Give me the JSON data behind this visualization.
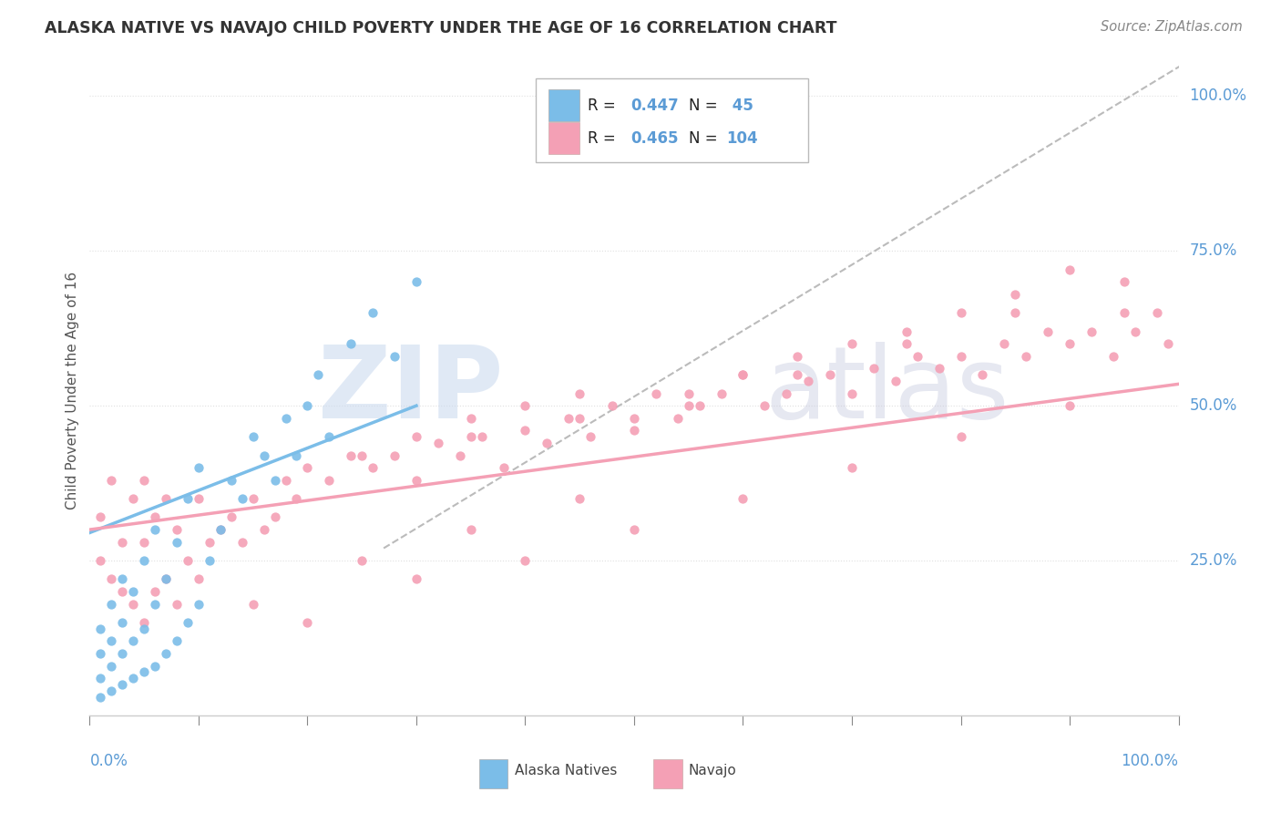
{
  "title": "ALASKA NATIVE VS NAVAJO CHILD POVERTY UNDER THE AGE OF 16 CORRELATION CHART",
  "source": "Source: ZipAtlas.com",
  "ylabel": "Child Poverty Under the Age of 16",
  "ytick_labels": [
    "25.0%",
    "50.0%",
    "75.0%",
    "100.0%"
  ],
  "ytick_values": [
    0.25,
    0.5,
    0.75,
    1.0
  ],
  "alaska_color": "#7bbde8",
  "navajo_color": "#f4a0b5",
  "alaska_R": 0.447,
  "alaska_N": 45,
  "navajo_R": 0.465,
  "navajo_N": 104,
  "legend_label_alaska": "Alaska Natives",
  "legend_label_navajo": "Navajo",
  "axis_label_color": "#5b9bd5",
  "background_color": "#ffffff",
  "grid_color": "#e0e0e0",
  "title_color": "#333333",
  "alaska_scatter_x": [
    0.01,
    0.01,
    0.01,
    0.01,
    0.02,
    0.02,
    0.02,
    0.02,
    0.03,
    0.03,
    0.03,
    0.03,
    0.04,
    0.04,
    0.04,
    0.05,
    0.05,
    0.05,
    0.06,
    0.06,
    0.06,
    0.07,
    0.07,
    0.08,
    0.08,
    0.09,
    0.09,
    0.1,
    0.1,
    0.11,
    0.12,
    0.13,
    0.14,
    0.15,
    0.16,
    0.17,
    0.18,
    0.19,
    0.2,
    0.21,
    0.22,
    0.24,
    0.26,
    0.28,
    0.3
  ],
  "alaska_scatter_y": [
    0.03,
    0.06,
    0.1,
    0.14,
    0.04,
    0.08,
    0.12,
    0.18,
    0.05,
    0.1,
    0.15,
    0.22,
    0.06,
    0.12,
    0.2,
    0.07,
    0.14,
    0.25,
    0.08,
    0.18,
    0.3,
    0.1,
    0.22,
    0.12,
    0.28,
    0.15,
    0.35,
    0.18,
    0.4,
    0.25,
    0.3,
    0.38,
    0.35,
    0.45,
    0.42,
    0.38,
    0.48,
    0.42,
    0.5,
    0.55,
    0.45,
    0.6,
    0.65,
    0.58,
    0.7
  ],
  "navajo_scatter_x": [
    0.01,
    0.01,
    0.02,
    0.02,
    0.03,
    0.03,
    0.04,
    0.04,
    0.05,
    0.05,
    0.05,
    0.06,
    0.06,
    0.07,
    0.07,
    0.08,
    0.08,
    0.09,
    0.1,
    0.1,
    0.11,
    0.12,
    0.13,
    0.14,
    0.15,
    0.16,
    0.17,
    0.18,
    0.19,
    0.2,
    0.22,
    0.24,
    0.26,
    0.28,
    0.3,
    0.32,
    0.34,
    0.36,
    0.38,
    0.4,
    0.42,
    0.44,
    0.46,
    0.48,
    0.5,
    0.52,
    0.54,
    0.56,
    0.58,
    0.6,
    0.62,
    0.64,
    0.66,
    0.68,
    0.7,
    0.72,
    0.74,
    0.76,
    0.78,
    0.8,
    0.82,
    0.84,
    0.86,
    0.88,
    0.9,
    0.92,
    0.94,
    0.95,
    0.96,
    0.98,
    0.99,
    0.3,
    0.35,
    0.4,
    0.45,
    0.5,
    0.55,
    0.6,
    0.65,
    0.7,
    0.75,
    0.8,
    0.85,
    0.9,
    0.25,
    0.35,
    0.45,
    0.55,
    0.65,
    0.75,
    0.85,
    0.95,
    0.2,
    0.3,
    0.4,
    0.5,
    0.6,
    0.7,
    0.8,
    0.9,
    0.15,
    0.25,
    0.35,
    0.45
  ],
  "navajo_scatter_y": [
    0.25,
    0.32,
    0.22,
    0.38,
    0.2,
    0.28,
    0.18,
    0.35,
    0.15,
    0.28,
    0.38,
    0.2,
    0.32,
    0.22,
    0.35,
    0.18,
    0.3,
    0.25,
    0.22,
    0.35,
    0.28,
    0.3,
    0.32,
    0.28,
    0.35,
    0.3,
    0.32,
    0.38,
    0.35,
    0.4,
    0.38,
    0.42,
    0.4,
    0.42,
    0.38,
    0.44,
    0.42,
    0.45,
    0.4,
    0.46,
    0.44,
    0.48,
    0.45,
    0.5,
    0.46,
    0.52,
    0.48,
    0.5,
    0.52,
    0.55,
    0.5,
    0.52,
    0.54,
    0.55,
    0.52,
    0.56,
    0.54,
    0.58,
    0.56,
    0.58,
    0.55,
    0.6,
    0.58,
    0.62,
    0.6,
    0.62,
    0.58,
    0.65,
    0.62,
    0.65,
    0.6,
    0.45,
    0.48,
    0.5,
    0.52,
    0.48,
    0.52,
    0.55,
    0.58,
    0.6,
    0.62,
    0.65,
    0.68,
    0.72,
    0.42,
    0.45,
    0.48,
    0.5,
    0.55,
    0.6,
    0.65,
    0.7,
    0.15,
    0.22,
    0.25,
    0.3,
    0.35,
    0.4,
    0.45,
    0.5,
    0.18,
    0.25,
    0.3,
    0.35
  ]
}
